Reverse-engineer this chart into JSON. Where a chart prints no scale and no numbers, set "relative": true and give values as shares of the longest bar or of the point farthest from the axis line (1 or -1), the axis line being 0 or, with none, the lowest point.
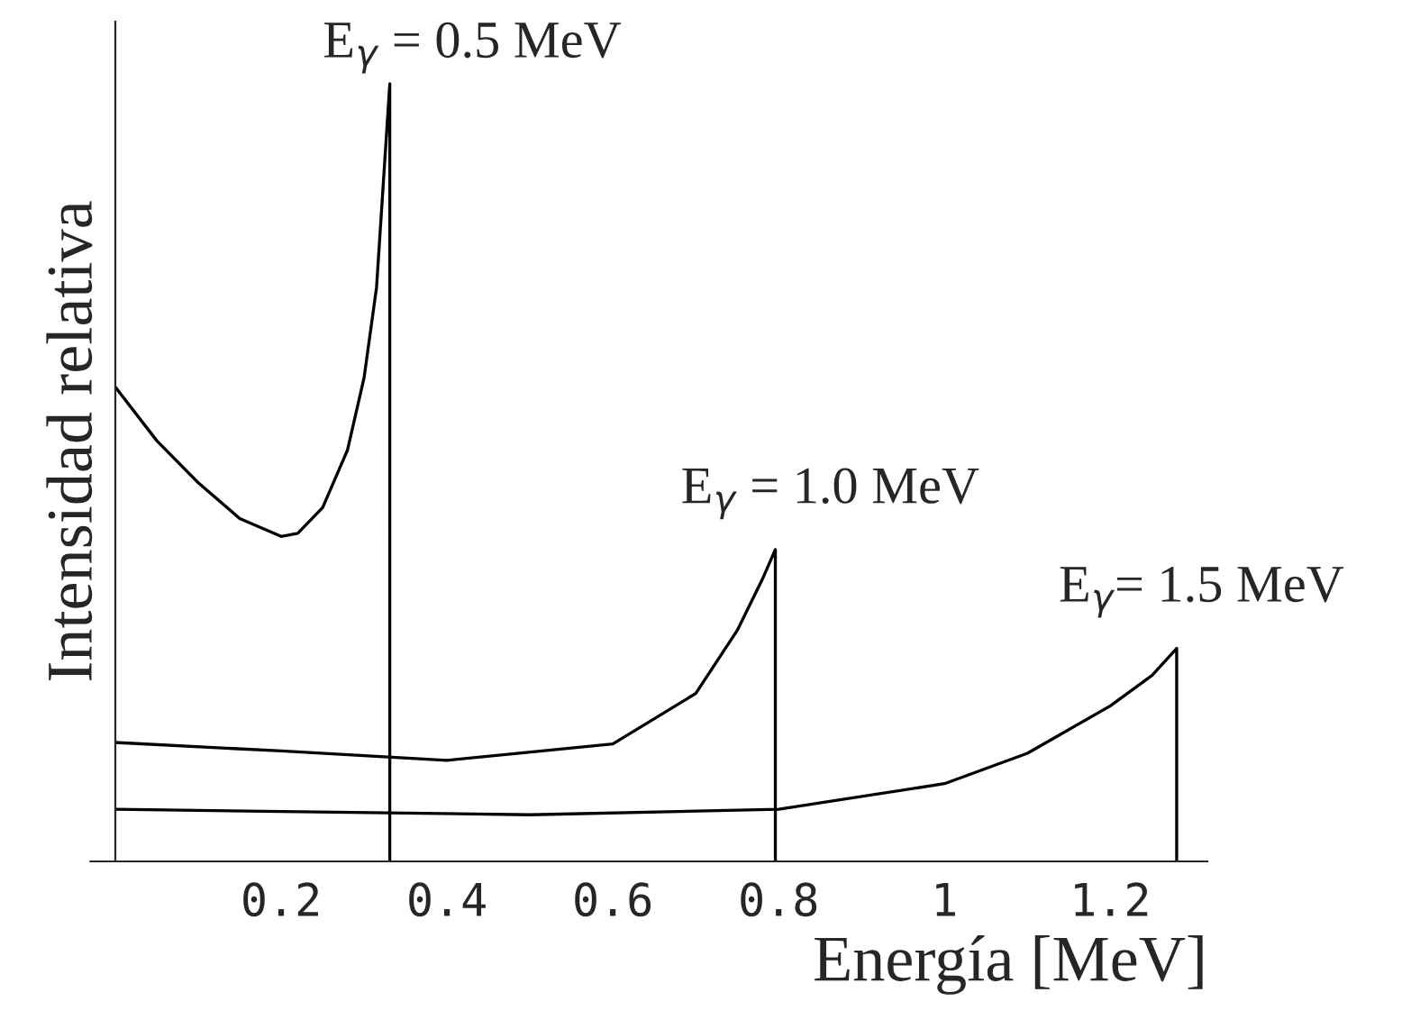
{
  "chart_data": {
    "type": "line",
    "relative": true,
    "xlabel": "Energía [MeV]",
    "ylabel": "Intensidad relativa",
    "xlim": [
      0,
      1.317
    ],
    "xticks": [
      0.2,
      0.4,
      0.6,
      0.8,
      1,
      1.2
    ],
    "grid": false,
    "legend": false,
    "marker": "none",
    "line_style": "solid",
    "series": [
      {
        "color": "#000000",
        "x": [
          0,
          0.05,
          0.1,
          0.15,
          0.2,
          0.22,
          0.25,
          0.28,
          0.3,
          0.315,
          0.331,
          0.331
        ],
        "values": [
          0.61,
          0.541,
          0.487,
          0.441,
          0.418,
          0.422,
          0.455,
          0.529,
          0.622,
          0.738,
          1,
          0
        ]
      },
      {
        "color": "#000000",
        "x": [
          0,
          0.2,
          0.4,
          0.6,
          0.7,
          0.75,
          0.78,
          0.796,
          0.796
        ],
        "values": [
          0.153,
          0.142,
          0.13,
          0.151,
          0.216,
          0.297,
          0.362,
          0.401,
          0
        ]
      },
      {
        "color": "#000000",
        "x": [
          0,
          0.5,
          0.8,
          1.0,
          1.1,
          1.2,
          1.25,
          1.28,
          1.28
        ],
        "values": [
          0.067,
          0.06,
          0.067,
          0.1,
          0.139,
          0.2,
          0.239,
          0.274,
          0
        ]
      }
    ],
    "annotations": [
      {
        "text": "E$_{γ}$ = 0.5 MeV",
        "x": 0.331,
        "y": 1
      },
      {
        "text": "E$_{γ}$ = 1.0 MeV",
        "x": 0.796,
        "y": 0.401
      },
      {
        "text": "E$_{γ}$= 1.5 MeV",
        "x": 1.28,
        "y": 0.274
      }
    ]
  }
}
